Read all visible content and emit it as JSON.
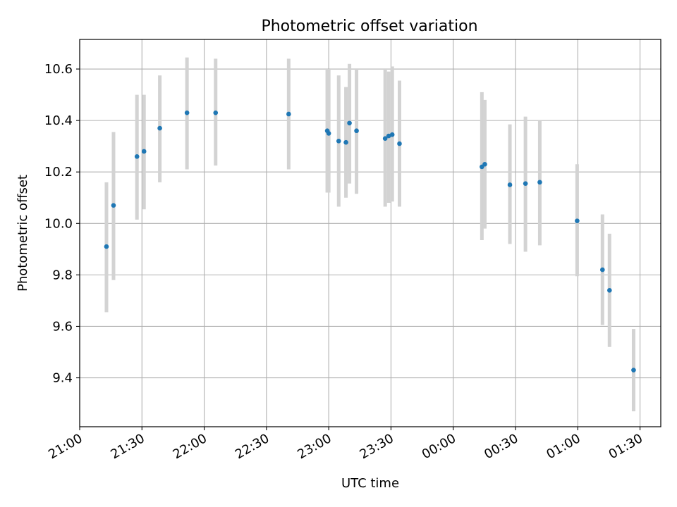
{
  "chart_data": {
    "type": "scatter",
    "title": "Photometric offset variation",
    "xlabel": "UTC time",
    "ylabel": "Photometric offset",
    "x_axis": {
      "unit": "minutes since 21:00 UTC",
      "range": [
        0,
        280
      ],
      "ticks": [
        0,
        30,
        60,
        90,
        120,
        150,
        180,
        210,
        240,
        270
      ],
      "tick_labels": [
        "21:00",
        "21:30",
        "22:00",
        "22:30",
        "23:00",
        "23:30",
        "00:00",
        "00:30",
        "01:00",
        "01:30"
      ]
    },
    "y_axis": {
      "range": [
        9.21,
        10.715
      ],
      "ticks": [
        9.4,
        9.6,
        9.8,
        10.0,
        10.2,
        10.4,
        10.6
      ],
      "tick_labels": [
        "9.4",
        "9.6",
        "9.8",
        "10.0",
        "10.2",
        "10.4",
        "10.6"
      ]
    },
    "grid": true,
    "point_color": "#1f77b4",
    "errorbar_color": "#d3d3d3",
    "points": [
      {
        "x": 12.9,
        "y": 9.91,
        "ylow": 9.655,
        "yhigh": 10.16
      },
      {
        "x": 16.3,
        "y": 10.07,
        "ylow": 9.78,
        "yhigh": 10.355
      },
      {
        "x": 27.6,
        "y": 10.26,
        "ylow": 10.015,
        "yhigh": 10.5
      },
      {
        "x": 31.0,
        "y": 10.28,
        "ylow": 10.055,
        "yhigh": 10.5
      },
      {
        "x": 38.6,
        "y": 10.37,
        "ylow": 10.16,
        "yhigh": 10.575
      },
      {
        "x": 51.7,
        "y": 10.43,
        "ylow": 10.21,
        "yhigh": 10.645
      },
      {
        "x": 65.5,
        "y": 10.43,
        "ylow": 10.225,
        "yhigh": 10.64
      },
      {
        "x": 100.7,
        "y": 10.425,
        "ylow": 10.21,
        "yhigh": 10.64
      },
      {
        "x": 119.3,
        "y": 10.36,
        "ylow": 10.12,
        "yhigh": 10.6
      },
      {
        "x": 120.0,
        "y": 10.35,
        "ylow": 10.12,
        "yhigh": 10.6
      },
      {
        "x": 124.8,
        "y": 10.32,
        "ylow": 10.065,
        "yhigh": 10.575
      },
      {
        "x": 128.3,
        "y": 10.315,
        "ylow": 10.1,
        "yhigh": 10.53
      },
      {
        "x": 130.0,
        "y": 10.39,
        "ylow": 10.155,
        "yhigh": 10.62
      },
      {
        "x": 133.4,
        "y": 10.36,
        "ylow": 10.115,
        "yhigh": 10.6
      },
      {
        "x": 147.2,
        "y": 10.33,
        "ylow": 10.065,
        "yhigh": 10.6
      },
      {
        "x": 148.9,
        "y": 10.34,
        "ylow": 10.08,
        "yhigh": 10.59
      },
      {
        "x": 150.6,
        "y": 10.345,
        "ylow": 10.085,
        "yhigh": 10.61
      },
      {
        "x": 154.1,
        "y": 10.31,
        "ylow": 10.065,
        "yhigh": 10.555
      },
      {
        "x": 193.8,
        "y": 10.22,
        "ylow": 9.935,
        "yhigh": 10.51
      },
      {
        "x": 195.2,
        "y": 10.23,
        "ylow": 9.98,
        "yhigh": 10.48
      },
      {
        "x": 207.3,
        "y": 10.15,
        "ylow": 9.92,
        "yhigh": 10.385
      },
      {
        "x": 214.8,
        "y": 10.155,
        "ylow": 9.89,
        "yhigh": 10.415
      },
      {
        "x": 221.7,
        "y": 10.16,
        "ylow": 9.915,
        "yhigh": 10.4
      },
      {
        "x": 239.7,
        "y": 10.01,
        "ylow": 9.795,
        "yhigh": 10.23
      },
      {
        "x": 251.9,
        "y": 9.82,
        "ylow": 9.605,
        "yhigh": 10.035
      },
      {
        "x": 255.3,
        "y": 9.74,
        "ylow": 9.52,
        "yhigh": 9.96
      },
      {
        "x": 266.9,
        "y": 9.43,
        "ylow": 9.27,
        "yhigh": 9.59
      }
    ]
  }
}
